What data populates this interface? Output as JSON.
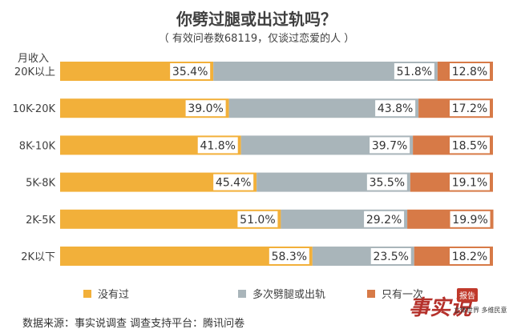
{
  "header": {
    "title": "你劈过腿或出过轨吗？",
    "subtitle": "（ 有效问卷数68119，仅谈过恋爱的人 ）"
  },
  "axis": {
    "ylabel": "月收入"
  },
  "colors": {
    "series0": "#f2b03a",
    "series1": "#a9b5ba",
    "series2": "#d77a47"
  },
  "chart_data": {
    "type": "bar",
    "orientation": "horizontal",
    "stacked": true,
    "title": "你劈过腿或出过轨吗？",
    "subtitle": "（ 有效问卷数68119，仅谈过恋爱的人 ）",
    "ylabel": "月收入",
    "categories": [
      "20K以上",
      "10K-20K",
      "8K-10K",
      "5K-8K",
      "2K-5K",
      "2K以下"
    ],
    "series": [
      {
        "name": "没有过",
        "values": [
          35.4,
          39.0,
          41.8,
          45.4,
          51.0,
          58.3
        ]
      },
      {
        "name": "多次劈腿或出轨",
        "values": [
          51.8,
          43.8,
          39.7,
          35.5,
          29.2,
          23.5
        ]
      },
      {
        "name": "只有一次",
        "values": [
          12.8,
          17.2,
          18.5,
          19.1,
          19.9,
          18.2
        ]
      }
    ],
    "value_format": "{v}%",
    "xlim": [
      0,
      100
    ],
    "grid": false,
    "legend": "bottom"
  },
  "legend": {
    "items": [
      "没有过",
      "多次劈腿或出轨",
      "只有一次"
    ]
  },
  "footer": {
    "source": "数据来源：事实说调查  调查支持平台：腾讯问卷"
  },
  "brand": {
    "logo_text": "事实说",
    "badge": "报告",
    "slogan": "立体世界 多维民意"
  }
}
